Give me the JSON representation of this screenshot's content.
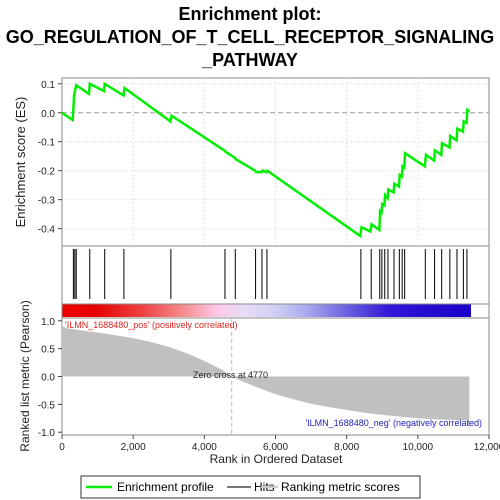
{
  "title_lines": [
    "Enrichment plot:",
    "GO_REGULATION_OF_T_CELL_RECEPTOR_SIGNALING",
    "_PATHWAY"
  ],
  "colors": {
    "es_line": "#00ee00",
    "hit": "#000000",
    "metric_fill": "#c0c0c0",
    "pos_label": "#dd2222",
    "neg_label": "#2222bb",
    "heat_pos": "#ee0000",
    "heat_neg": "#1a00cc"
  },
  "chart_data": [
    {
      "type": "line",
      "name": "es-panel",
      "ylabel": "Enrichment score (ES)",
      "xlim": [
        0,
        12000
      ],
      "ylim": [
        -0.46,
        0.12
      ],
      "yticks": [
        "0.1",
        "0.0",
        "-0.1",
        "-0.2",
        "-0.3",
        "-0.4"
      ],
      "ytick_values": [
        0.1,
        0.0,
        -0.1,
        -0.2,
        -0.3,
        -0.4
      ],
      "grid": true,
      "series": [
        {
          "x": [
            0,
            300,
            340,
            400,
            760,
            780,
            1180,
            1200,
            1730,
            1760,
            3050,
            3080,
            4560,
            4600,
            4860,
            4880,
            5430,
            5460,
            5610,
            5630,
            5750,
            5770,
            8380,
            8420,
            8670,
            8700,
            8920,
            8940,
            8980,
            9000,
            9060,
            9080,
            9150,
            9170,
            9320,
            9340,
            9470,
            9490,
            9550,
            9570,
            9620,
            9640,
            10200,
            10230,
            10460,
            10480,
            10660,
            10680,
            10890,
            10910,
            11090,
            11110,
            11270,
            11290,
            11370,
            11390,
            11450
          ],
          "y": [
            0.0,
            -0.025,
            0.06,
            0.095,
            0.065,
            0.1,
            0.075,
            0.1,
            0.06,
            0.085,
            -0.03,
            -0.01,
            -0.13,
            -0.135,
            -0.155,
            -0.16,
            -0.2,
            -0.205,
            -0.205,
            -0.2,
            -0.205,
            -0.2,
            -0.425,
            -0.395,
            -0.41,
            -0.385,
            -0.405,
            -0.34,
            -0.345,
            -0.315,
            -0.32,
            -0.285,
            -0.295,
            -0.265,
            -0.275,
            -0.245,
            -0.255,
            -0.215,
            -0.22,
            -0.185,
            -0.19,
            -0.14,
            -0.185,
            -0.145,
            -0.165,
            -0.13,
            -0.145,
            -0.105,
            -0.12,
            -0.08,
            -0.095,
            -0.055,
            -0.065,
            -0.03,
            -0.035,
            0.01,
            0.005
          ]
        }
      ]
    },
    {
      "type": "scatter",
      "name": "hits-panel",
      "hit_ranks": [
        320,
        360,
        400,
        780,
        1200,
        1740,
        3060,
        4580,
        4870,
        5440,
        5620,
        5760,
        8400,
        8690,
        8930,
        8990,
        9070,
        9160,
        9330,
        9480,
        9560,
        9630,
        10210,
        10470,
        10670,
        10900,
        11100,
        11280,
        11380
      ]
    },
    {
      "type": "area",
      "name": "metric-panel",
      "xlabel": "Rank in Ordered Dataset",
      "ylabel": "Ranked list metric (Pearson)",
      "xlim": [
        0,
        12000
      ],
      "ylim": [
        -1.05,
        1.05
      ],
      "xticks": [
        "0",
        "2,000",
        "4,000",
        "6,000",
        "8,000",
        "10,000",
        "12,000"
      ],
      "xtick_values": [
        0,
        2000,
        4000,
        6000,
        8000,
        10000,
        12000
      ],
      "yticks": [
        "1.0",
        "0.5",
        "0.0",
        "-0.5",
        "-1.0"
      ],
      "ytick_values": [
        1.0,
        0.5,
        0.0,
        -0.5,
        -1.0
      ],
      "x": [
        0,
        30,
        100,
        500,
        1000,
        1500,
        2000,
        2500,
        3000,
        3500,
        4000,
        4500,
        4770,
        5000,
        5500,
        6000,
        6500,
        7000,
        7500,
        8000,
        8500,
        9000,
        9500,
        10000,
        10500,
        11000,
        11400,
        11450
      ],
      "y": [
        0.98,
        0.9,
        0.87,
        0.83,
        0.79,
        0.74,
        0.69,
        0.62,
        0.53,
        0.42,
        0.28,
        0.12,
        0.0,
        -0.07,
        -0.2,
        -0.32,
        -0.41,
        -0.49,
        -0.55,
        -0.6,
        -0.65,
        -0.69,
        -0.72,
        -0.75,
        -0.77,
        -0.78,
        -0.79,
        -0.98
      ],
      "pos_label": "'ILMN_1688480_pos' (positively correlated)",
      "neg_label": "'ILMN_1688480_neg' (negatively correlated)",
      "zero_cross_label": "Zero cross at 4770",
      "zero_cross": 4770
    }
  ],
  "legend": {
    "placement": "bottom",
    "items": [
      {
        "label": "Enrichment profile",
        "kind": "line",
        "color": "#00ee00"
      },
      {
        "label": "Hits",
        "kind": "line",
        "color": "#777777"
      },
      {
        "label": "Ranking metric scores",
        "kind": "line",
        "color": "#cccccc"
      }
    ]
  }
}
